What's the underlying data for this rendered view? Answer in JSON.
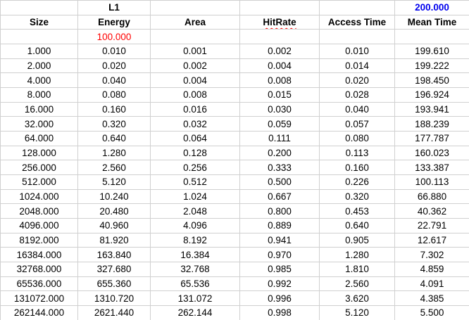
{
  "colors": {
    "grid_line": "#d0d0d0",
    "accent_red": "#ff0000",
    "accent_blue": "#0000ee",
    "text": "#000000",
    "background": "#ffffff"
  },
  "table": {
    "group_label": "L1",
    "mean_time_target": "200.000",
    "base_energy": "100.000",
    "headers": [
      "Size",
      "Energy",
      "Area",
      "HitRate",
      "Access Time",
      "Mean Time"
    ],
    "rows": [
      [
        "1.000",
        "0.010",
        "0.001",
        "0.002",
        "0.010",
        "199.610"
      ],
      [
        "2.000",
        "0.020",
        "0.002",
        "0.004",
        "0.014",
        "199.222"
      ],
      [
        "4.000",
        "0.040",
        "0.004",
        "0.008",
        "0.020",
        "198.450"
      ],
      [
        "8.000",
        "0.080",
        "0.008",
        "0.015",
        "0.028",
        "196.924"
      ],
      [
        "16.000",
        "0.160",
        "0.016",
        "0.030",
        "0.040",
        "193.941"
      ],
      [
        "32.000",
        "0.320",
        "0.032",
        "0.059",
        "0.057",
        "188.239"
      ],
      [
        "64.000",
        "0.640",
        "0.064",
        "0.111",
        "0.080",
        "177.787"
      ],
      [
        "128.000",
        "1.280",
        "0.128",
        "0.200",
        "0.113",
        "160.023"
      ],
      [
        "256.000",
        "2.560",
        "0.256",
        "0.333",
        "0.160",
        "133.387"
      ],
      [
        "512.000",
        "5.120",
        "0.512",
        "0.500",
        "0.226",
        "100.113"
      ],
      [
        "1024.000",
        "10.240",
        "1.024",
        "0.667",
        "0.320",
        "66.880"
      ],
      [
        "2048.000",
        "20.480",
        "2.048",
        "0.800",
        "0.453",
        "40.362"
      ],
      [
        "4096.000",
        "40.960",
        "4.096",
        "0.889",
        "0.640",
        "22.791"
      ],
      [
        "8192.000",
        "81.920",
        "8.192",
        "0.941",
        "0.905",
        "12.617"
      ],
      [
        "16384.000",
        "163.840",
        "16.384",
        "0.970",
        "1.280",
        "7.302"
      ],
      [
        "32768.000",
        "327.680",
        "32.768",
        "0.985",
        "1.810",
        "4.859"
      ],
      [
        "65536.000",
        "655.360",
        "65.536",
        "0.992",
        "2.560",
        "4.091"
      ],
      [
        "131072.000",
        "1310.720",
        "131.072",
        "0.996",
        "3.620",
        "4.385"
      ],
      [
        "262144.000",
        "2621.440",
        "262.144",
        "0.998",
        "5.120",
        "5.500"
      ]
    ]
  }
}
